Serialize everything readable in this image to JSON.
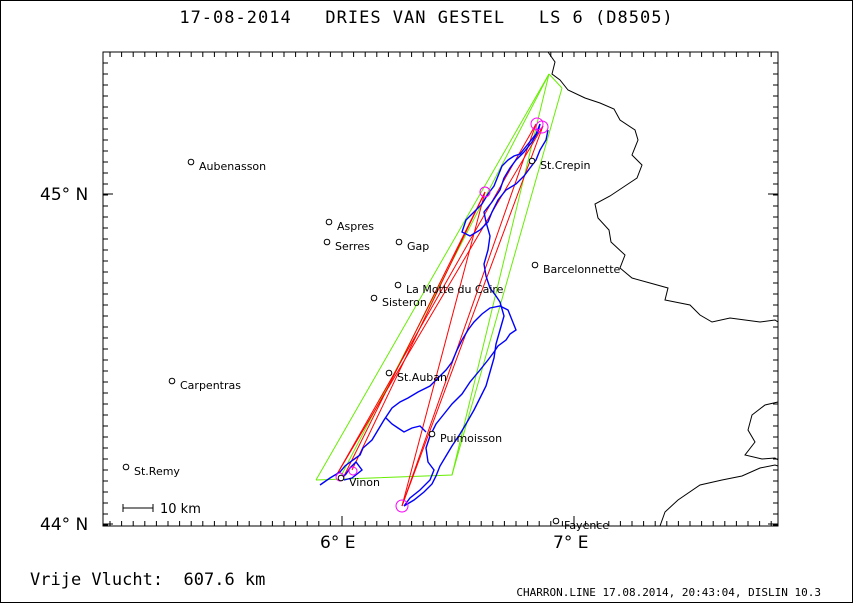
{
  "header": {
    "title": "17-08-2014   DRIES VAN GESTEL   LS 6 (D8505)"
  },
  "footer": {
    "distance": "Vrije Vlucht:  607.6 km",
    "program": "CHARRON.LINE 17.08.2014, 20:43:04, DISLIN 10.3"
  },
  "axes": {
    "y_labels": [
      "45° N",
      "44° N"
    ],
    "x_labels": [
      "6° E",
      "7° E"
    ]
  },
  "scale_bar": {
    "label": "10 km"
  },
  "places": [
    {
      "name": "Aubenasson"
    },
    {
      "name": "Aspres"
    },
    {
      "name": "Serres"
    },
    {
      "name": "Gap"
    },
    {
      "name": "St.Crepin"
    },
    {
      "name": "Barcelonnette"
    },
    {
      "name": "La Motte du Caire"
    },
    {
      "name": "Sisteron"
    },
    {
      "name": "Carpentras"
    },
    {
      "name": "St.Auban"
    },
    {
      "name": "Puimoisson"
    },
    {
      "name": "St.Remy"
    },
    {
      "name": "Vinon"
    },
    {
      "name": "Fayence"
    }
  ],
  "colors": {
    "track": "#0000ff",
    "task_lines": "#ff0000",
    "sector_lines": "#66ee00",
    "turnpoints": "#ff00ff",
    "border": "#000000"
  }
}
